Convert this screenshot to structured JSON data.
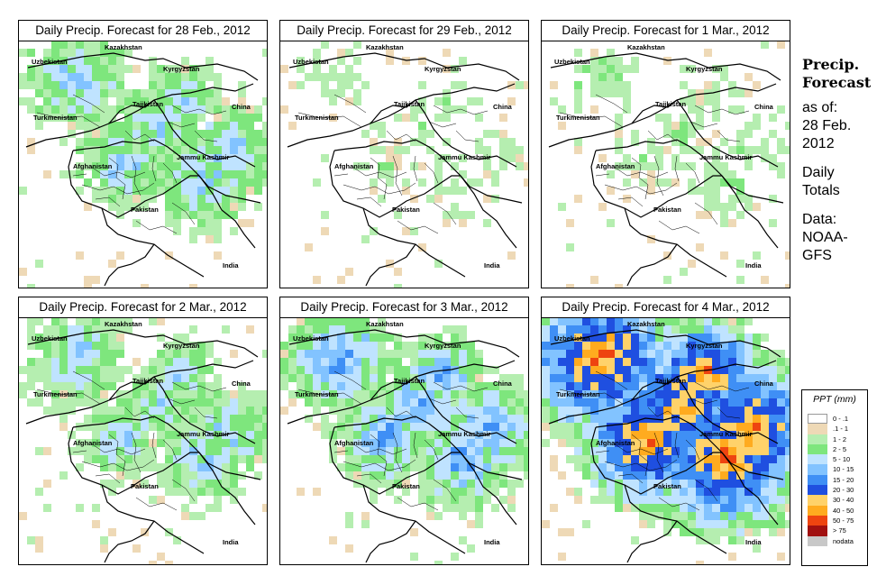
{
  "panels": [
    {
      "title": "Daily Precip. Forecast for  28 Feb., 2012",
      "intensity": 0.45,
      "seed": 11
    },
    {
      "title": "Daily Precip. Forecast for  29 Feb., 2012",
      "intensity": 0.15,
      "seed": 23
    },
    {
      "title": "Daily Precip. Forecast for  1 Mar., 2012",
      "intensity": 0.18,
      "seed": 37
    },
    {
      "title": "Daily Precip. Forecast for  2 Mar., 2012",
      "intensity": 0.42,
      "seed": 41
    },
    {
      "title": "Daily Precip. Forecast for  3 Mar., 2012",
      "intensity": 0.55,
      "seed": 53
    },
    {
      "title": "Daily Precip. Forecast for  4 Mar., 2012",
      "intensity": 0.95,
      "seed": 67
    }
  ],
  "map_labels": {
    "kazakhstan": "Kazakhstan",
    "uzbekistan": "Uzbekistan",
    "kyrgyzstan": "Kyrgyzstan",
    "tajikistan": "Tajikistan",
    "china": "China",
    "turkmenistan": "Turkmenistan",
    "jammu_kashmir": "Jammu Kashmir",
    "afghanistan": "Afghanistan",
    "pakistan": "Pakistan",
    "india": "India"
  },
  "sidebar": {
    "title_line1": "Precip.",
    "title_line2": "Forecast",
    "asof_line1": "as of:",
    "asof_line2": "28 Feb.",
    "asof_line3": "2012",
    "totals_line1": "Daily",
    "totals_line2": "Totals",
    "data_line1": "Data:",
    "data_line2": "NOAA-",
    "data_line3": "GFS"
  },
  "legend": {
    "title": "PPT (mm)",
    "items": [
      {
        "label": "0 - .1",
        "color": "#ffffff"
      },
      {
        "label": ".1 - 1",
        "color": "#eed9b6"
      },
      {
        "label": "1 - 2",
        "color": "#b5eeb0"
      },
      {
        "label": "2 - 5",
        "color": "#7ee67d"
      },
      {
        "label": "5 - 10",
        "color": "#bfe3ff"
      },
      {
        "label": "10 - 15",
        "color": "#82c3ff"
      },
      {
        "label": "15 - 20",
        "color": "#3f8ff5"
      },
      {
        "label": "20 - 30",
        "color": "#1f4fe0"
      },
      {
        "label": "30 - 40",
        "color": "#ffd26a"
      },
      {
        "label": "40 - 50",
        "color": "#ffab1f"
      },
      {
        "label": "50 - 75",
        "color": "#ee4410"
      },
      {
        "label": "> 75",
        "color": "#a11010"
      },
      {
        "label": "nodata",
        "color": "#c8c8c8"
      }
    ]
  }
}
